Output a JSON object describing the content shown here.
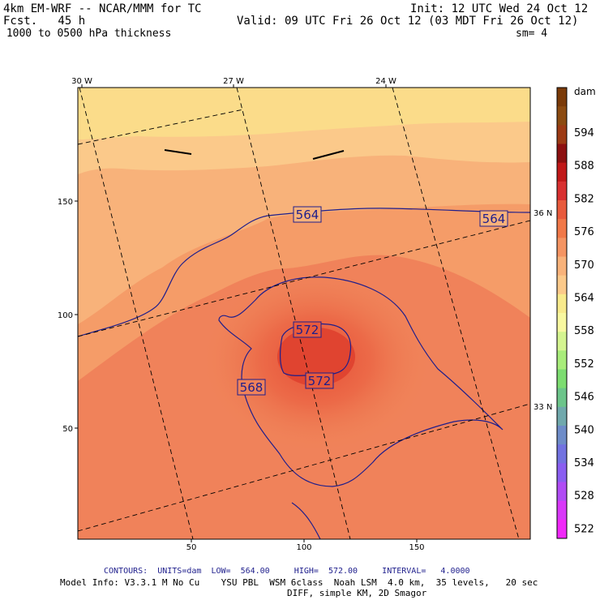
{
  "header": {
    "model": "4km EM-WRF -- NCAR/MMM for TC",
    "fcst": "Fcst.   45 h",
    "field": " 1000 to 0500 hPa thickness",
    "init": "Init: 12 UTC Wed 24 Oct 12",
    "valid": "Valid: 09 UTC Fri 26 Oct 12 (03 MDT Fri 26 Oct 12)",
    "sm": "sm= 4"
  },
  "axes": {
    "top_ticks": [
      "30 W",
      "27 W",
      "24 W"
    ],
    "left_ticks": [
      "150",
      "100",
      "50"
    ],
    "bottom_ticks": [
      "50",
      "100",
      "150"
    ],
    "right_ticks": [
      "36 N",
      "33 N"
    ]
  },
  "contour_labels": [
    "564",
    "564",
    "572",
    "572",
    "568"
  ],
  "legend": {
    "unit": "dam",
    "values": [
      "594",
      "588",
      "582",
      "576",
      "570",
      "564",
      "558",
      "552",
      "546",
      "540",
      "534",
      "528",
      "522"
    ],
    "colors": [
      "#7a3a08",
      "#8b4a10",
      "#9c3a14",
      "#8c1010",
      "#c01818",
      "#d83030",
      "#e85a3c",
      "#f07848",
      "#f49462",
      "#f8b27a",
      "#fbc98a",
      "#f8ea8c",
      "#f8f8a0",
      "#d4f490",
      "#a8ec7a",
      "#7cdc70",
      "#6cc48a",
      "#70a8ac",
      "#6e8cc8",
      "#7272e0",
      "#8a5ef0",
      "#b04cf4",
      "#d838f8",
      "#f028f8"
    ]
  },
  "footer": {
    "contours": "CONTOURS:  UNITS=dam  LOW=  564.00     HIGH=  572.00     INTERVAL=   4.0000",
    "model_info": "Model Info: V3.3.1 M No Cu    YSU PBL  WSM 6class  Noah LSM  4.0 km,  35 levels,   20 sec",
    "diff": "DIFF, simple KM, 2D Smagor"
  }
}
